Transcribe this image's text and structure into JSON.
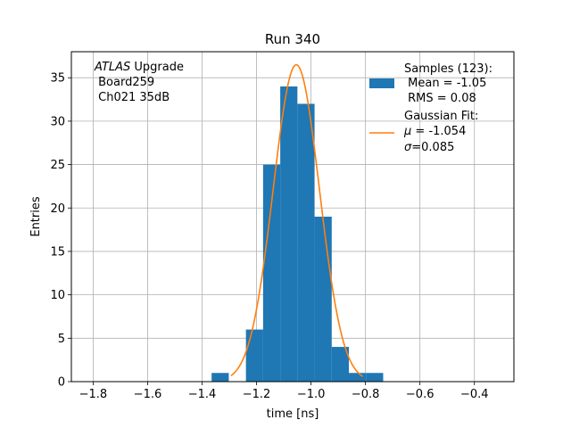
{
  "chart_data": {
    "type": "bar",
    "title": "Run 340",
    "xlabel": "time [ns]",
    "ylabel": "Entries",
    "xlim": [
      -1.88,
      -0.255
    ],
    "ylim": [
      0,
      38
    ],
    "grid": true,
    "x_ticks": [
      -1.8,
      -1.6,
      -1.4,
      -1.2,
      -1.0,
      -0.8,
      -0.6,
      -0.4
    ],
    "x_tick_labels": [
      "−1.8",
      "−1.6",
      "−1.4",
      "−1.2",
      "−1.0",
      "−0.8",
      "−0.6",
      "−0.4"
    ],
    "y_ticks": [
      0,
      5,
      10,
      15,
      20,
      25,
      30,
      35
    ],
    "y_tick_labels": [
      "0",
      "5",
      "10",
      "15",
      "20",
      "25",
      "30",
      "35"
    ],
    "annotation": {
      "atlas": "ATLAS",
      "line1_rest": " Upgrade",
      "line2": " Board259",
      "line3": " Ch021 35dB"
    },
    "legend": {
      "placement": "top-right",
      "samples": {
        "line1": "Samples (123):",
        "line2": " Mean = -1.05",
        "line3": " RMS = 0.08"
      },
      "fit": {
        "line1": "Gaussian Fit:",
        "line2_sym": "μ",
        "line2_val": " = -1.054",
        "line3_sym": "σ",
        "line3_val": "=0.085"
      }
    },
    "series": [
      {
        "type": "histogram",
        "color": "#1f77b4",
        "bins": [
          {
            "x0": -1.365,
            "x1": -1.302,
            "count": 1
          },
          {
            "x0": -1.302,
            "x1": -1.239,
            "count": 0
          },
          {
            "x0": -1.239,
            "x1": -1.176,
            "count": 6
          },
          {
            "x0": -1.176,
            "x1": -1.113,
            "count": 25
          },
          {
            "x0": -1.113,
            "x1": -1.05,
            "count": 34
          },
          {
            "x0": -1.05,
            "x1": -0.987,
            "count": 32
          },
          {
            "x0": -0.987,
            "x1": -0.924,
            "count": 19
          },
          {
            "x0": -0.924,
            "x1": -0.861,
            "count": 4
          },
          {
            "x0": -0.861,
            "x1": -0.798,
            "count": 1
          },
          {
            "x0": -0.798,
            "x1": -0.735,
            "count": 1
          }
        ]
      },
      {
        "type": "line",
        "color": "#ff7f0e",
        "gaussian": {
          "amplitude": 36.5,
          "mu": -1.054,
          "sigma": 0.085,
          "x_range": [
            -1.294,
            -0.81
          ]
        }
      }
    ]
  }
}
